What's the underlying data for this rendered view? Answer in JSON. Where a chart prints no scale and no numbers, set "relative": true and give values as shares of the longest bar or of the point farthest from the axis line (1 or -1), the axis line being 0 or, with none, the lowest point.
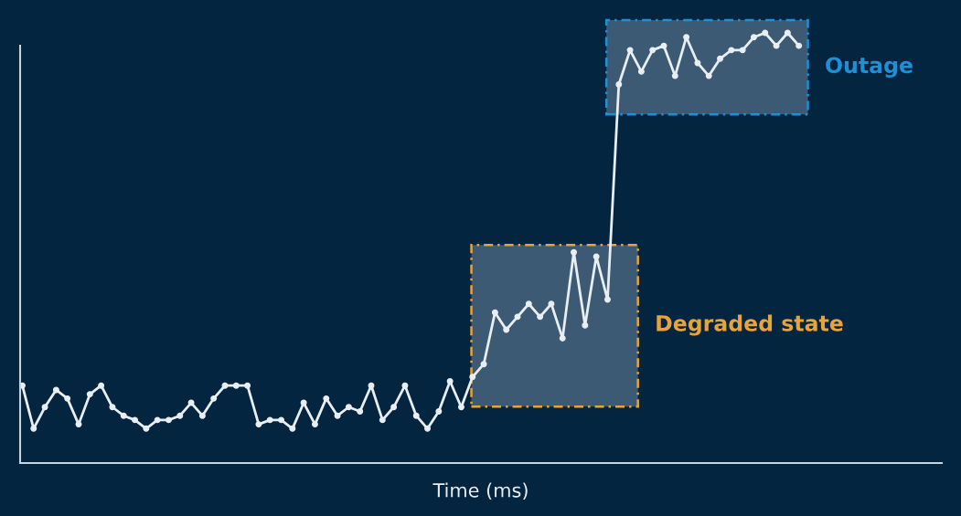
{
  "chart_data": {
    "type": "line",
    "relative": true,
    "xlabel": "Time (ms)",
    "marker": "circle",
    "grid": false,
    "legend": false,
    "categories": [
      null,
      null,
      null,
      null,
      null,
      null,
      null,
      null,
      null,
      null,
      null,
      null,
      null,
      null,
      null,
      null,
      null,
      null,
      null,
      null,
      null,
      null,
      null,
      null,
      null,
      null,
      null,
      null,
      null,
      null,
      null,
      null,
      null,
      null,
      null,
      null,
      null,
      null,
      null,
      null,
      null,
      null,
      null,
      null,
      null,
      null,
      null,
      null,
      null,
      null,
      null,
      null,
      null,
      null,
      null,
      null,
      null,
      null,
      null,
      null,
      null,
      null,
      null,
      null,
      null,
      null,
      null,
      null,
      null,
      null
    ],
    "series": [
      {
        "color": "#e8eef2",
        "values": [
          0.18,
          0.08,
          0.13,
          0.17,
          0.15,
          0.09,
          0.16,
          0.18,
          0.13,
          0.11,
          0.1,
          0.08,
          0.1,
          0.1,
          0.11,
          0.14,
          0.11,
          0.15,
          0.18,
          0.18,
          0.18,
          0.09,
          0.1,
          0.1,
          0.08,
          0.14,
          0.09,
          0.15,
          0.11,
          0.13,
          0.12,
          0.18,
          0.1,
          0.13,
          0.18,
          0.11,
          0.08,
          0.12,
          0.19,
          0.13,
          0.2,
          0.23,
          0.35,
          0.31,
          0.34,
          0.37,
          0.34,
          0.37,
          0.29,
          0.49,
          0.32,
          0.48,
          0.38,
          0.88,
          0.96,
          0.91,
          0.96,
          0.97,
          0.9,
          0.99,
          0.93,
          0.9,
          0.94,
          0.96,
          0.96,
          0.99,
          1,
          0.97,
          1.0,
          0.97
        ]
      }
    ],
    "annotations": [
      "Degraded state",
      "Outage"
    ]
  }
}
